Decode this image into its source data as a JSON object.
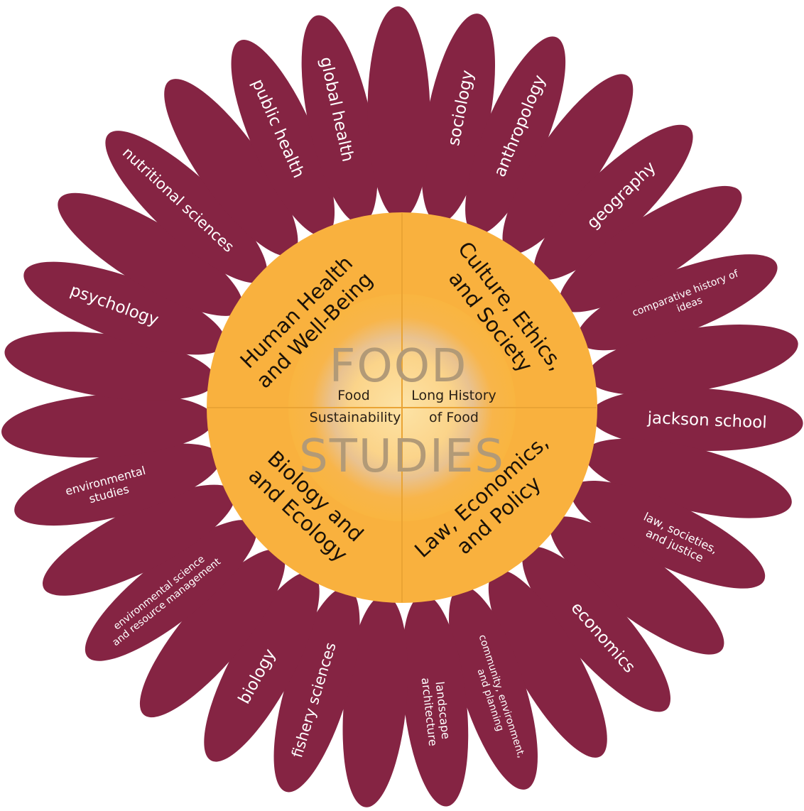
{
  "diagram": {
    "center": {
      "title_line1": "FOOD",
      "title_line2": "STUDIES",
      "left_line1": "Food",
      "left_line2": "Sustainability",
      "right_line1": "Long History",
      "right_line2": "of Food"
    },
    "quadrants": [
      {
        "key": "tl",
        "lines": [
          "Human Health",
          "and Well-Being"
        ]
      },
      {
        "key": "tr",
        "lines": [
          "Culture, Ethics,",
          "and Society"
        ]
      },
      {
        "key": "bl",
        "lines": [
          "Biology and",
          "and Ecology"
        ]
      },
      {
        "key": "br",
        "lines": [
          "Law, Economics,",
          "and Policy"
        ]
      }
    ],
    "petals": [
      {
        "lines": [
          "sociology"
        ]
      },
      {
        "lines": [
          "anthropology"
        ]
      },
      {
        "lines": []
      },
      {
        "lines": [
          "geography"
        ]
      },
      {
        "lines": []
      },
      {
        "lines": [
          "comparative history of",
          "ideas"
        ]
      },
      {
        "lines": []
      },
      {
        "lines": [
          "jackson school"
        ]
      },
      {
        "lines": []
      },
      {
        "lines": [
          "law, societies,",
          "and justice"
        ]
      },
      {
        "lines": []
      },
      {
        "lines": [
          "economics"
        ]
      },
      {
        "lines": []
      },
      {
        "lines": [
          "community, environment,",
          "and planning"
        ]
      },
      {
        "lines": [
          "landscape",
          "architecture"
        ]
      },
      {
        "lines": []
      },
      {
        "lines": [
          "fishery sciences"
        ]
      },
      {
        "lines": [
          "biology"
        ]
      },
      {
        "lines": []
      },
      {
        "lines": [
          "environmental science",
          "and resource management"
        ]
      },
      {
        "lines": []
      },
      {
        "lines": [
          "environmental",
          "studies"
        ]
      },
      {
        "lines": []
      },
      {
        "lines": []
      },
      {
        "lines": [
          "psychology"
        ]
      },
      {
        "lines": []
      },
      {
        "lines": [
          "nutritional sciences"
        ]
      },
      {
        "lines": []
      },
      {
        "lines": [
          "public health"
        ]
      },
      {
        "lines": [
          "global health"
        ]
      },
      {
        "lines": []
      }
    ]
  }
}
